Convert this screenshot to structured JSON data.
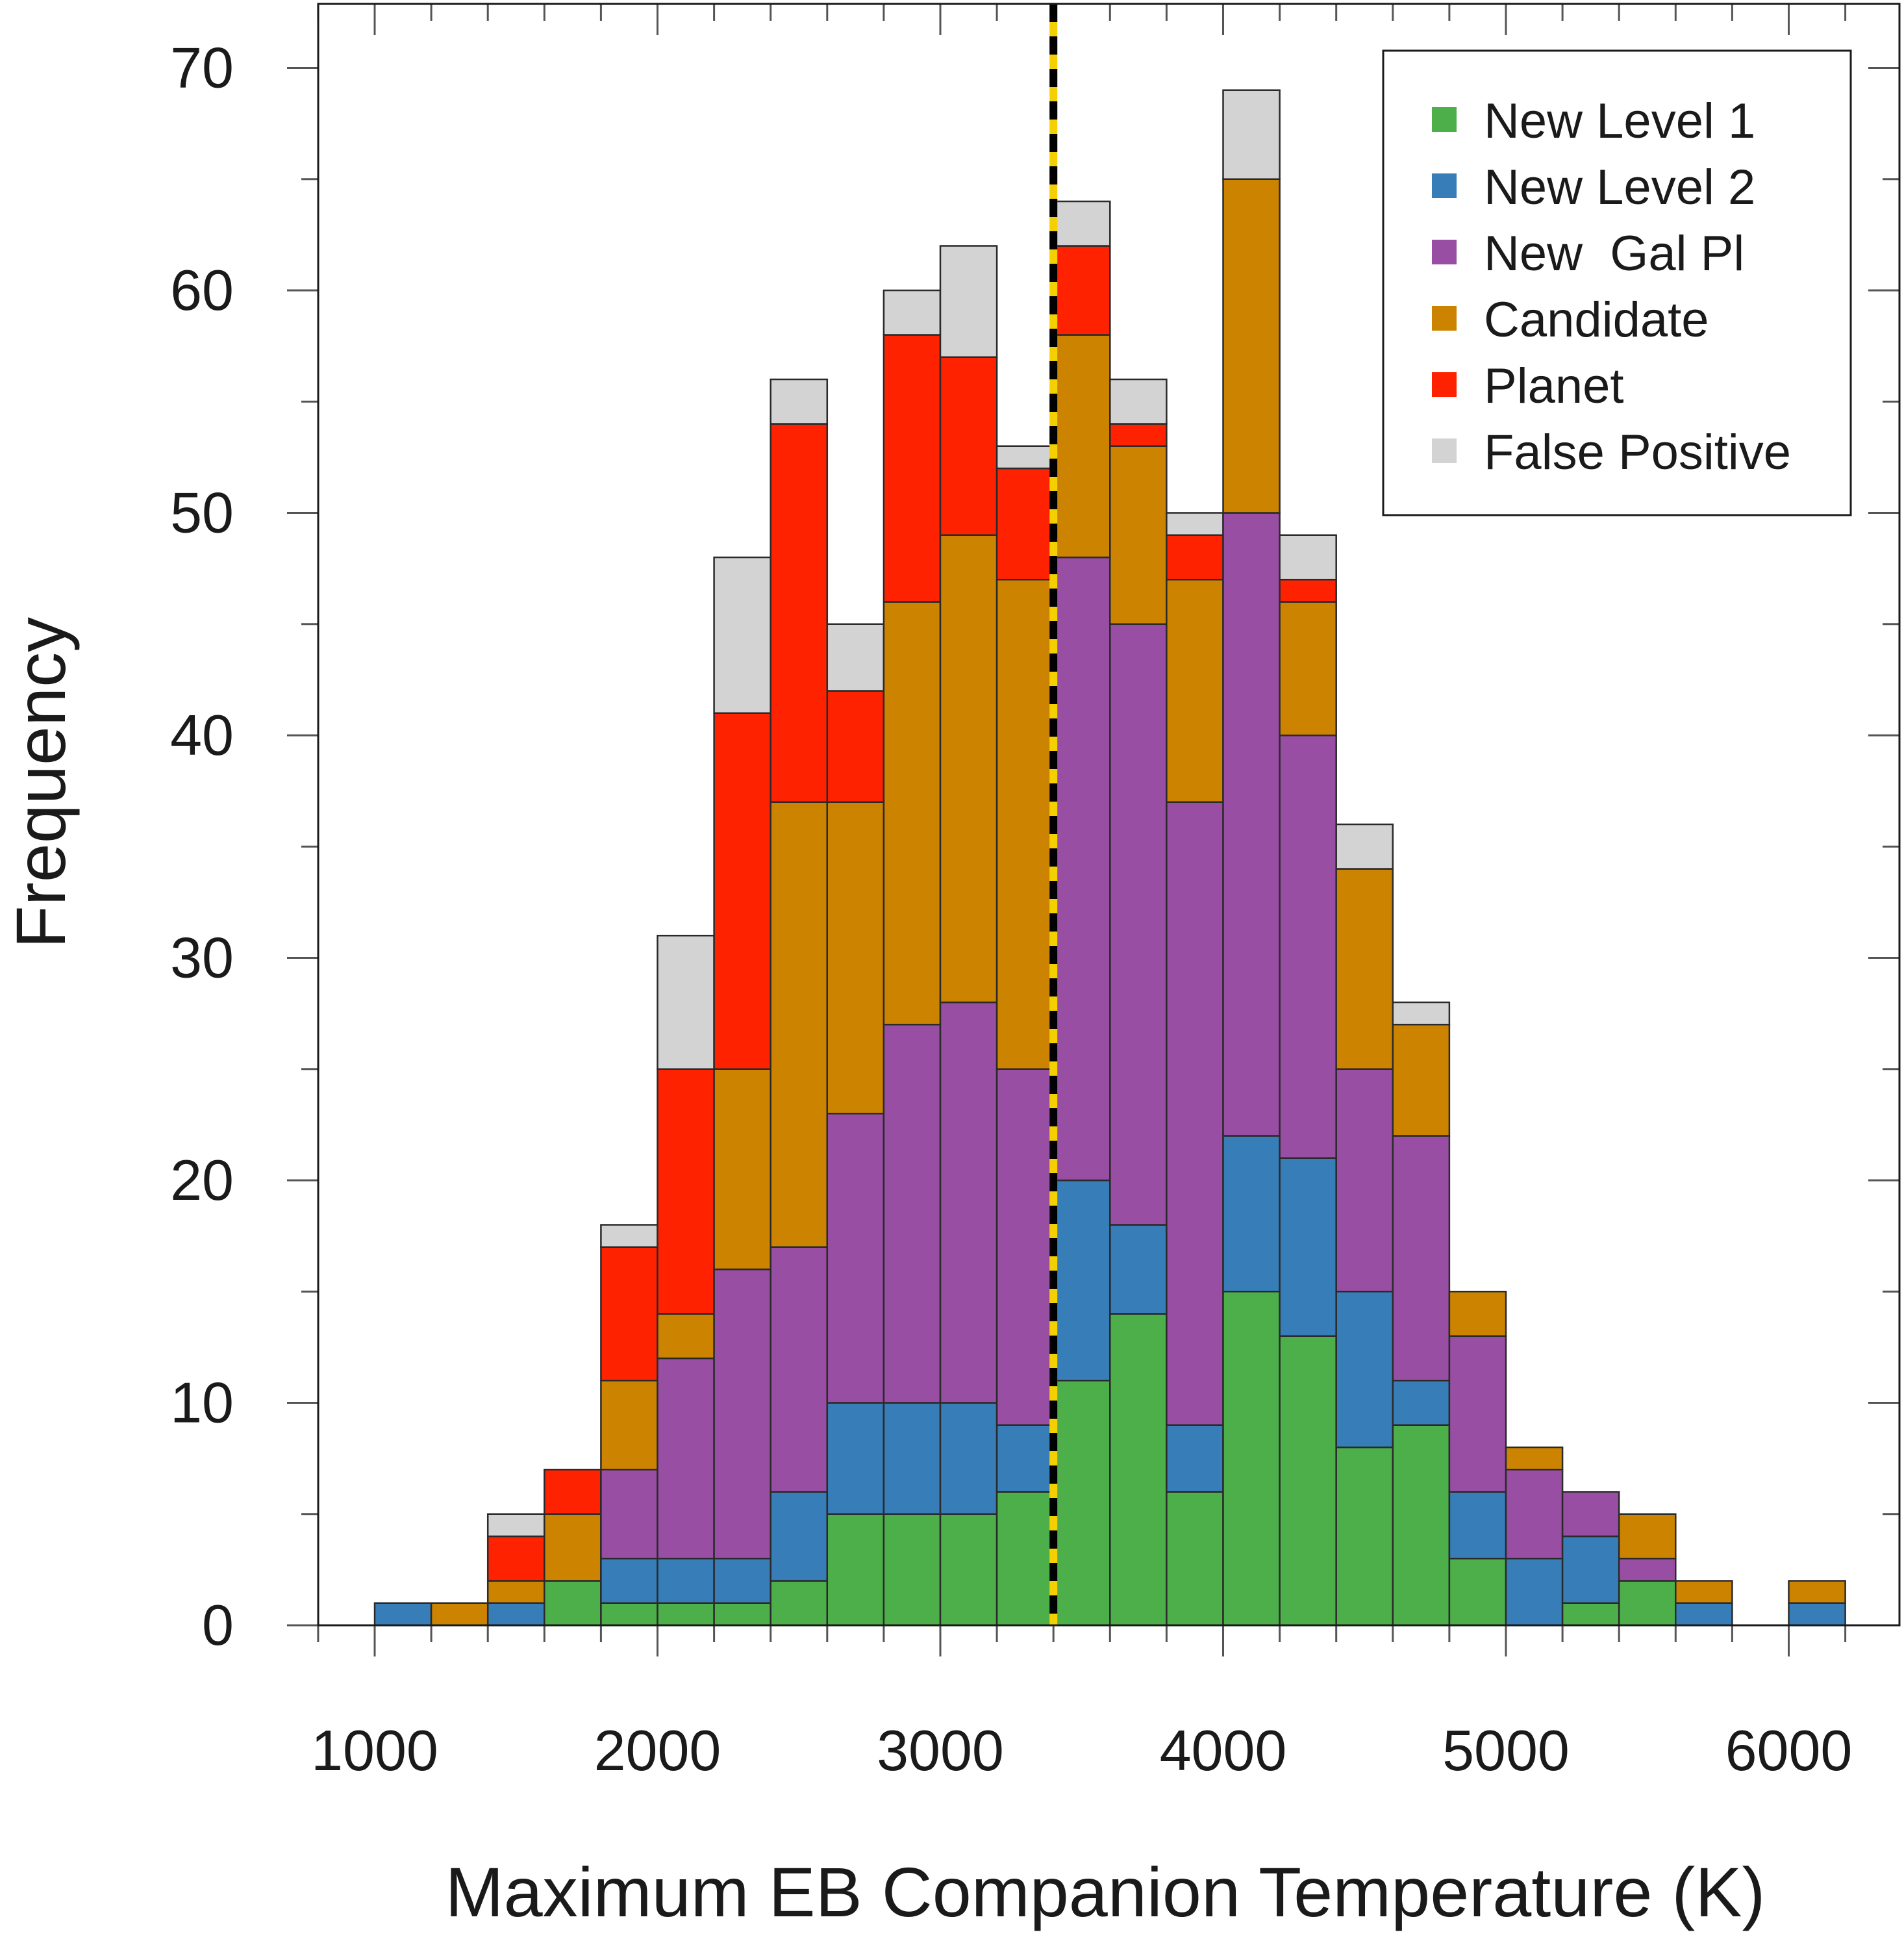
{
  "chart_data": {
    "type": "bar",
    "stacked": true,
    "xlabel": "Maximum EB Companion Temperature (K)",
    "ylabel": "Frequency",
    "xlim": [
      800,
      6300
    ],
    "ylim": [
      0,
      73
    ],
    "xticks": [
      1000,
      2000,
      3000,
      4000,
      5000,
      6000
    ],
    "yticks": [
      0,
      10,
      20,
      30,
      40,
      50,
      60,
      70
    ],
    "bin_width": 200,
    "bin_starts": [
      1000,
      1200,
      1400,
      1600,
      1800,
      2000,
      2200,
      2400,
      2600,
      2800,
      3000,
      3200,
      3400,
      3600,
      3800,
      4000,
      4200,
      4400,
      4600,
      4800,
      5000,
      5200,
      5400,
      5600,
      5800,
      6000
    ],
    "series": [
      {
        "name": "New Level 1",
        "color": "#4daf4a",
        "values": [
          0,
          0,
          0,
          2,
          1,
          1,
          1,
          2,
          5,
          5,
          5,
          6,
          11,
          14,
          6,
          15,
          13,
          8,
          9,
          3,
          0,
          1,
          2,
          0,
          0,
          0
        ]
      },
      {
        "name": "New Level 2",
        "color": "#377eb8",
        "values": [
          1,
          0,
          1,
          0,
          2,
          2,
          2,
          4,
          5,
          5,
          5,
          3,
          9,
          4,
          3,
          7,
          8,
          7,
          2,
          3,
          3,
          3,
          0,
          1,
          0,
          1
        ]
      },
      {
        "name": "New  Gal Pl",
        "color": "#984ea3",
        "values": [
          0,
          0,
          0,
          0,
          4,
          9,
          13,
          11,
          13,
          17,
          18,
          16,
          28,
          27,
          28,
          28,
          19,
          10,
          11,
          7,
          4,
          2,
          1,
          0,
          0,
          0
        ]
      },
      {
        "name": "Candidate",
        "color": "#cc8400",
        "values": [
          0,
          1,
          1,
          3,
          4,
          2,
          9,
          20,
          14,
          19,
          21,
          22,
          10,
          8,
          10,
          15,
          6,
          9,
          5,
          2,
          1,
          0,
          2,
          1,
          0,
          1
        ]
      },
      {
        "name": "Planet",
        "color": "#ff2200",
        "values": [
          0,
          0,
          2,
          2,
          6,
          11,
          16,
          17,
          5,
          12,
          8,
          5,
          4,
          1,
          2,
          0,
          1,
          0,
          0,
          0,
          0,
          0,
          0,
          0,
          0,
          0
        ]
      },
      {
        "name": "False Positive",
        "color": "#d3d3d3",
        "values": [
          0,
          0,
          1,
          0,
          1,
          6,
          7,
          2,
          3,
          2,
          5,
          1,
          2,
          2,
          1,
          4,
          2,
          2,
          1,
          0,
          0,
          0,
          0,
          0,
          0,
          0
        ]
      }
    ],
    "reference_line": {
      "x": 3400,
      "style": "dashed",
      "colors": [
        "#000000",
        "#f5d000"
      ]
    },
    "legend": {
      "position": "top-right",
      "entries": [
        "New Level 1",
        "New Level 2",
        "New  Gal Pl",
        "Candidate",
        "Planet",
        "False Positive"
      ]
    }
  }
}
